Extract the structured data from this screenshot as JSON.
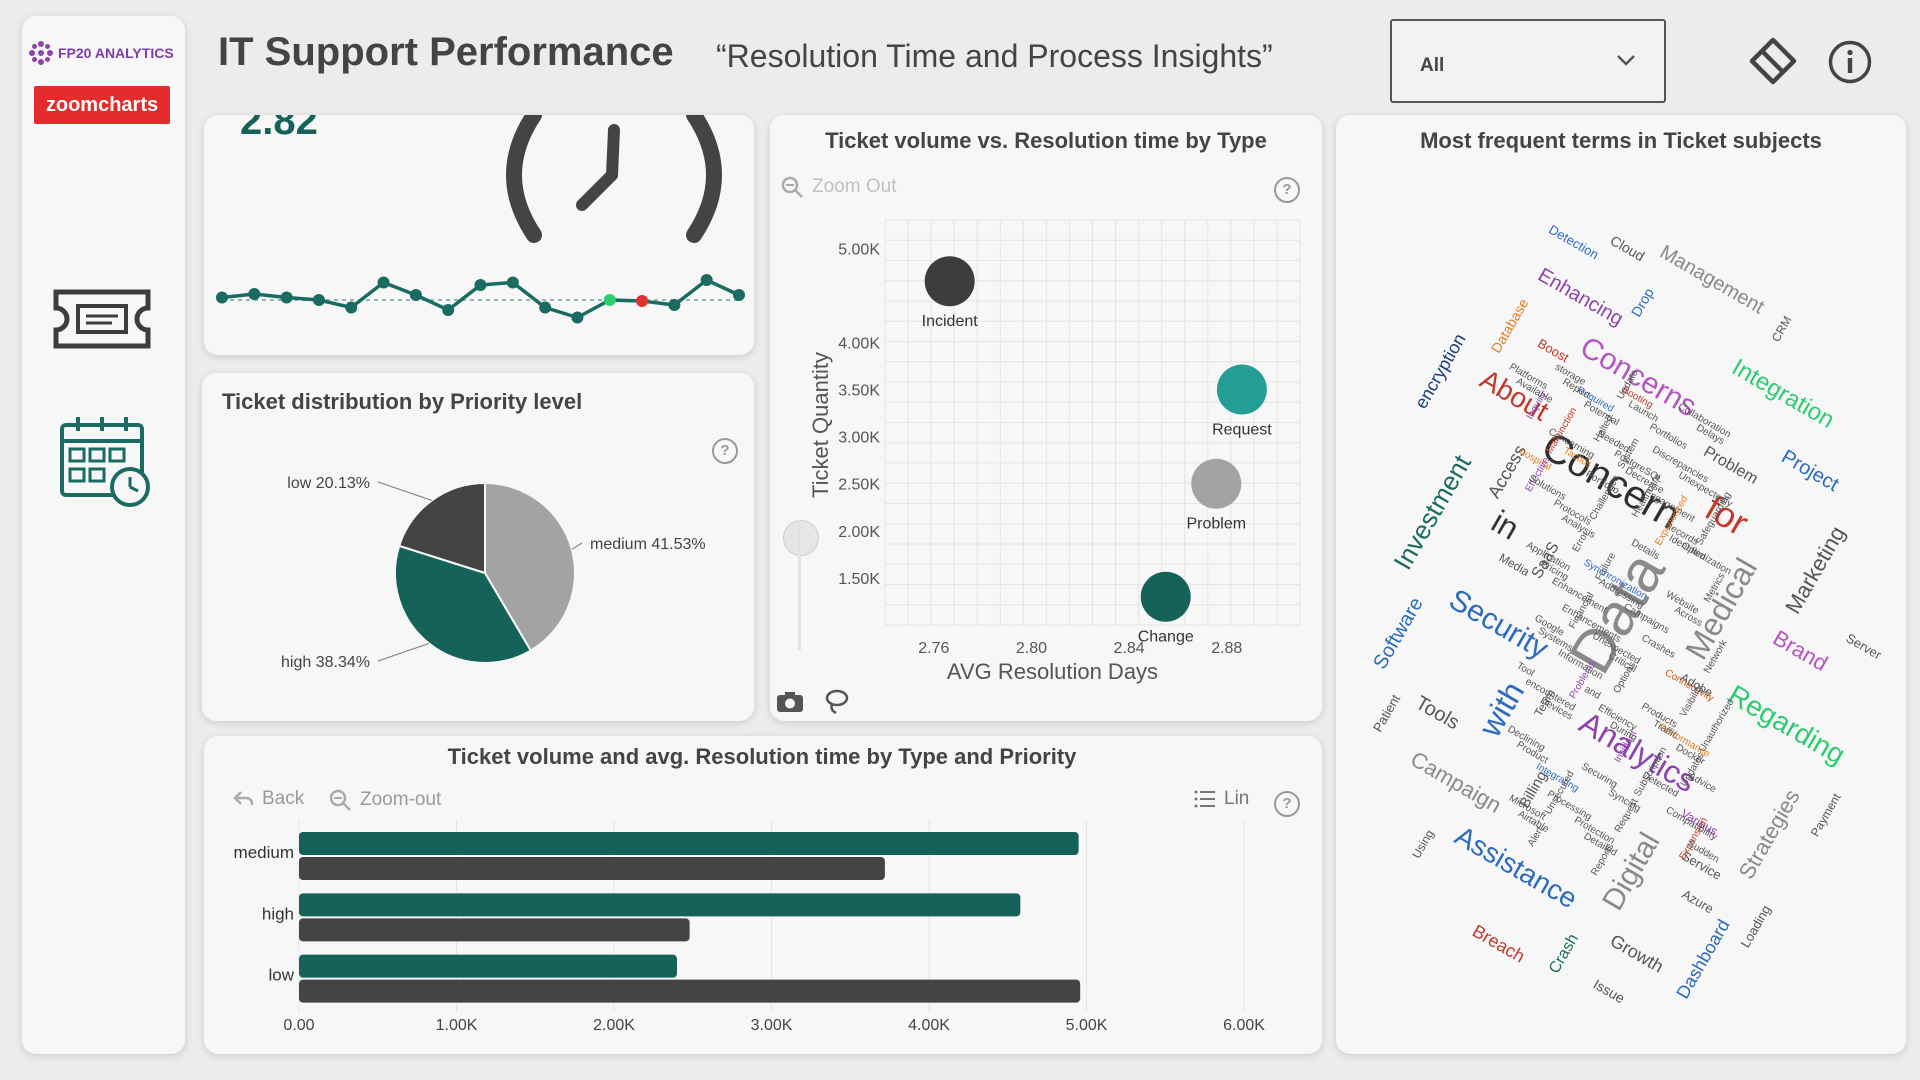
{
  "sidebar": {
    "brand_label": "FP20 ANALYTICS",
    "partner_label": "zoomcharts",
    "icons": [
      "ticket-icon",
      "calendar-clock-icon"
    ]
  },
  "header": {
    "title": "IT Support Performance",
    "subtitle": "“Resolution Time and Process Insights”",
    "filter_value": "All",
    "icons": [
      "eraser-icon",
      "info-icon"
    ]
  },
  "kpi": {
    "value": "2.82",
    "icon": "clock-icon",
    "trend": [
      0.55,
      0.62,
      0.55,
      0.5,
      0.35,
      0.85,
      0.6,
      0.3,
      0.8,
      0.85,
      0.35,
      0.15,
      0.5,
      0.48,
      0.4,
      0.9,
      0.6
    ],
    "highlight_colors": {
      "max": "#2ecc71",
      "min": "#e03131"
    },
    "line_color": "#1a6b61"
  },
  "charts": {
    "scatter": {
      "title": "Ticket volume vs. Resolution time by Type",
      "zoom_label": "Zoom Out"
    },
    "pie": {
      "title": "Ticket distribution by Priority level"
    },
    "bars": {
      "title": "Ticket volume and avg. Resolution time by Type and Priority",
      "back_label": "Back",
      "zoom_label": "Zoom-out",
      "scale_label": "Lin"
    },
    "wordcloud": {
      "title": "Most frequent terms in Ticket subjects"
    }
  },
  "chart_data": [
    {
      "type": "scatter",
      "xlabel": "AVG Resolution Days",
      "ylabel": "Ticket Quantity",
      "xlim": [
        2.74,
        2.91
      ],
      "ylim": [
        1000,
        5300
      ],
      "x_ticks": [
        2.76,
        2.8,
        2.84,
        2.88
      ],
      "x_tick_labels": [
        "2.76",
        "2.80",
        "2.84",
        "2.88"
      ],
      "y_ticks": [
        1500,
        2000,
        2500,
        3000,
        3500,
        4000,
        5000
      ],
      "y_tick_labels": [
        "1.50K",
        "2.00K",
        "2.50K",
        "3.00K",
        "3.50K",
        "4.00K",
        "5.00K"
      ],
      "points": [
        {
          "label": "Incident",
          "x": 2.7665,
          "y": 4650,
          "color": "#3d3d3d"
        },
        {
          "label": "Request",
          "x": 2.8862,
          "y": 3500,
          "color": "#239e94"
        },
        {
          "label": "Problem",
          "x": 2.8757,
          "y": 2500,
          "color": "#a3a3a3"
        },
        {
          "label": "Change",
          "x": 2.855,
          "y": 1300,
          "color": "#15625a"
        }
      ]
    },
    {
      "type": "pie",
      "slices": [
        {
          "label": "medium",
          "value": 41.53,
          "text": "medium 41.53%",
          "color": "#a3a3a3"
        },
        {
          "label": "high",
          "value": 38.34,
          "text": "high 38.34%",
          "color": "#15625a"
        },
        {
          "label": "low",
          "value": 20.13,
          "text": "low 20.13%",
          "color": "#444444"
        }
      ]
    },
    {
      "type": "bar",
      "orientation": "horizontal",
      "categories": [
        "medium",
        "high",
        "low"
      ],
      "series": [
        {
          "values": [
            4950,
            4580,
            2400
          ],
          "color": "#15625a"
        },
        {
          "values": [
            3720,
            2480,
            4960
          ],
          "color": "#444444"
        }
      ],
      "xlim": [
        0,
        6000
      ],
      "x_ticks": [
        0,
        1000,
        2000,
        3000,
        4000,
        5000,
        6000
      ],
      "x_tick_labels": [
        "0.00",
        "1.00K",
        "2.00K",
        "3.00K",
        "4.00K",
        "5.00K",
        "6.00K"
      ]
    }
  ],
  "wordcloud": {
    "words": [
      {
        "text": "Data",
        "size": 60,
        "color": "#8a8a8a"
      },
      {
        "text": "Concern",
        "size": 40,
        "color": "#2e2e2e"
      },
      {
        "text": "Analytics",
        "size": 32,
        "color": "#8e44ad"
      },
      {
        "text": "Medical",
        "size": 32,
        "color": "#8a8a8a"
      },
      {
        "text": "Security",
        "size": 30,
        "color": "#2c6bbf"
      },
      {
        "text": "Concerns",
        "size": 30,
        "color": "#b455c2"
      },
      {
        "text": "with",
        "size": 32,
        "color": "#2c6bbf"
      },
      {
        "text": "for",
        "size": 36,
        "color": "#c0392b"
      },
      {
        "text": "in",
        "size": 32,
        "color": "#333333"
      },
      {
        "text": "Digital",
        "size": 30,
        "color": "#8a8a8a"
      },
      {
        "text": "Regarding",
        "size": 28,
        "color": "#2ecc71"
      },
      {
        "text": "Assistance",
        "size": 28,
        "color": "#2c6bbf"
      },
      {
        "text": "Investment",
        "size": 26,
        "color": "#1a6b61"
      },
      {
        "text": "Integration",
        "size": 24,
        "color": "#2ecc71"
      },
      {
        "text": "About",
        "size": 28,
        "color": "#c0392b"
      },
      {
        "text": "Marketing",
        "size": 22,
        "color": "#555555"
      },
      {
        "text": "Brand",
        "size": 22,
        "color": "#b455c2"
      },
      {
        "text": "Campaign",
        "size": 22,
        "color": "#8a8a8a"
      },
      {
        "text": "Strategies",
        "size": 22,
        "color": "#8a8a8a"
      },
      {
        "text": "Tools",
        "size": 20,
        "color": "#555555"
      },
      {
        "text": "Enhancing",
        "size": 20,
        "color": "#8e44ad"
      },
      {
        "text": "Software",
        "size": 20,
        "color": "#2c6bbf"
      },
      {
        "text": "Project",
        "size": 20,
        "color": "#2c6bbf"
      },
      {
        "text": "Management",
        "size": 20,
        "color": "#8a8a8a"
      },
      {
        "text": "Dashboard",
        "size": 18,
        "color": "#2c6bbf"
      },
      {
        "text": "Growth",
        "size": 18,
        "color": "#555555"
      },
      {
        "text": "Performance",
        "size": 18,
        "color": "#e67e22"
      },
      {
        "text": "encryption",
        "size": 18,
        "color": "#1a3d7c"
      },
      {
        "text": "Breach",
        "size": 18,
        "color": "#c0392b"
      },
      {
        "text": "Required",
        "size": 18,
        "color": "#2c6bbf"
      },
      {
        "text": "System",
        "size": 18,
        "color": "#555555"
      },
      {
        "text": "Engagement",
        "size": 16,
        "color": "#555555"
      },
      {
        "text": "Optimization",
        "size": 16,
        "color": "#555555"
      },
      {
        "text": "Access",
        "size": 18,
        "color": "#555555"
      },
      {
        "text": "Information",
        "size": 15,
        "color": "#555555"
      },
      {
        "text": "Efficiency",
        "size": 15,
        "color": "#555555"
      },
      {
        "text": "Subscription",
        "size": 14,
        "color": "#555555"
      },
      {
        "text": "Compatibility",
        "size": 14,
        "color": "#555555"
      },
      {
        "text": "Platforms",
        "size": 14,
        "color": "#555555"
      },
      {
        "text": "Malfunction",
        "size": 13,
        "color": "#c0392b"
      },
      {
        "text": "Portfolio",
        "size": 14,
        "color": "#555555"
      },
      {
        "text": "Problem",
        "size": 16,
        "color": "#555555"
      },
      {
        "text": "Database",
        "size": 14,
        "color": "#e67e22"
      },
      {
        "text": "Detection",
        "size": 13,
        "color": "#2c6bbf"
      },
      {
        "text": "encountered",
        "size": 15,
        "color": "#555555"
      },
      {
        "text": "Billing",
        "size": 15,
        "color": "#555555"
      },
      {
        "text": "Syncing",
        "size": 13,
        "color": "#555555"
      },
      {
        "text": "Service",
        "size": 13,
        "color": "#555555"
      },
      {
        "text": "Crash",
        "size": 16,
        "color": "#1a6b61"
      },
      {
        "text": "hospital",
        "size": 16,
        "color": "#e67e22"
      },
      {
        "text": "Protocols",
        "size": 14,
        "color": "#555555"
      },
      {
        "text": "Failure",
        "size": 15,
        "color": "#555555"
      },
      {
        "text": "Campaigns",
        "size": 14,
        "color": "#555555"
      },
      {
        "text": "Cloud",
        "size": 14,
        "color": "#555555"
      },
      {
        "text": "Unauthorized",
        "size": 15,
        "color": "#555555"
      },
      {
        "text": "Integrating",
        "size": 14,
        "color": "#2c6bbf"
      },
      {
        "text": "Protection",
        "size": 13,
        "color": "#555555"
      },
      {
        "text": "Update",
        "size": 13,
        "color": "#555555"
      },
      {
        "text": "Portfolios",
        "size": 12,
        "color": "#555555"
      },
      {
        "text": "Unexpectedly",
        "size": 13,
        "color": "#555555"
      },
      {
        "text": "Payment",
        "size": 12,
        "color": "#555555"
      },
      {
        "text": "Enhancement",
        "size": 14,
        "color": "#555555"
      },
      {
        "text": "Unexpected",
        "size": 13,
        "color": "#555555"
      },
      {
        "text": "Patient",
        "size": 13,
        "color": "#555555"
      },
      {
        "text": "Docker",
        "size": 14,
        "color": "#555555"
      },
      {
        "text": "Microsoft",
        "size": 14,
        "color": "#555555"
      },
      {
        "text": "Loading",
        "size": 13,
        "color": "#555555"
      },
      {
        "text": "Potential",
        "size": 12,
        "color": "#555555"
      },
      {
        "text": "PostgreSQL",
        "size": 12,
        "color": "#555555"
      },
      {
        "text": "Experienced",
        "size": 12,
        "color": "#e67e22"
      },
      {
        "text": "Various",
        "size": 12,
        "color": "#8e44ad"
      },
      {
        "text": "Google",
        "size": 12,
        "color": "#555555"
      },
      {
        "text": "Problems",
        "size": 14,
        "color": "#8e44ad"
      },
      {
        "text": "During",
        "size": 14,
        "color": "#555555"
      },
      {
        "text": "Detected",
        "size": 15,
        "color": "#555555"
      },
      {
        "text": "Expansion",
        "size": 14,
        "color": "#c0392b"
      },
      {
        "text": "Available",
        "size": 13,
        "color": "#555555"
      },
      {
        "text": "Concerning",
        "size": 13,
        "color": "#555555"
      },
      {
        "text": "Challenges",
        "size": 14,
        "color": "#555555"
      },
      {
        "text": "Details",
        "size": 15,
        "color": "#555555"
      },
      {
        "text": "Website",
        "size": 14,
        "color": "#555555"
      },
      {
        "text": "Network",
        "size": 13,
        "color": "#555555"
      },
      {
        "text": "Devices",
        "size": 12,
        "color": "#555555"
      },
      {
        "text": "Azure",
        "size": 13,
        "color": "#555555"
      },
      {
        "text": "Request",
        "size": 13,
        "color": "#555555"
      },
      {
        "text": "Server",
        "size": 13,
        "color": "#555555"
      },
      {
        "text": "Collaboration",
        "size": 12,
        "color": "#555555"
      },
      {
        "text": "Effective",
        "size": 12,
        "color": "#8e44ad"
      },
      {
        "text": "Analysis",
        "size": 13,
        "color": "#555555"
      },
      {
        "text": "Synchronization",
        "size": 12,
        "color": "#2c6bbf"
      },
      {
        "text": "Team",
        "size": 12,
        "color": "#555555"
      },
      {
        "text": "Connectivity",
        "size": 11,
        "color": "#d35400"
      },
      {
        "text": "Declining",
        "size": 12,
        "color": "#555555"
      },
      {
        "text": "Unsecured",
        "size": 12,
        "color": "#555555"
      },
      {
        "text": "Detailed",
        "size": 12,
        "color": "#555555"
      },
      {
        "text": "Booting",
        "size": 12,
        "color": "#c0392b"
      },
      {
        "text": "SaaS",
        "size": 16,
        "color": "#555555"
      },
      {
        "text": "Issue",
        "size": 14,
        "color": "#555555"
      },
      {
        "text": "Application",
        "size": 13,
        "color": "#555555"
      },
      {
        "text": "Financial",
        "size": 13,
        "color": "#555555"
      },
      {
        "text": "Critical",
        "size": 13,
        "color": "#555555"
      },
      {
        "text": "Products",
        "size": 14,
        "color": "#555555"
      },
      {
        "text": "Updates",
        "size": 12,
        "color": "#555555"
      },
      {
        "text": "Airtable",
        "size": 12,
        "color": "#555555"
      },
      {
        "text": "storage",
        "size": 12,
        "color": "#555555"
      },
      {
        "text": "Halted",
        "size": 12,
        "color": "#555555"
      },
      {
        "text": "Decrease",
        "size": 12,
        "color": "#555555"
      },
      {
        "text": "Records",
        "size": 13,
        "color": "#555555"
      },
      {
        "text": "Metrics",
        "size": 14,
        "color": "#555555"
      },
      {
        "text": "Systems",
        "size": 14,
        "color": "#555555"
      },
      {
        "text": "and",
        "size": 18,
        "color": "#555555"
      },
      {
        "text": "Incident",
        "size": 14,
        "color": "#8e44ad"
      },
      {
        "text": "Boost",
        "size": 13,
        "color": "#c0392b"
      },
      {
        "text": "Sudden",
        "size": 12,
        "color": "#555555"
      },
      {
        "text": "Inquiry",
        "size": 15,
        "color": "#8e44ad"
      },
      {
        "text": "Tactics",
        "size": 12,
        "color": "#e67e22"
      },
      {
        "text": "Adobe",
        "size": 12,
        "color": "#555555"
      },
      {
        "text": "Drop",
        "size": 14,
        "color": "#2c6bbf"
      },
      {
        "text": "Across",
        "size": 13,
        "color": "#555555"
      },
      {
        "text": "Tool",
        "size": 14,
        "color": "#555555"
      },
      {
        "text": "CRM",
        "size": 12,
        "color": "#555555"
      },
      {
        "text": "Securing",
        "size": 12,
        "color": "#555555"
      },
      {
        "text": "Media",
        "size": 12,
        "color": "#555555"
      },
      {
        "text": "Using",
        "size": 12,
        "color": "#555555"
      },
      {
        "text": "Delays",
        "size": 12,
        "color": "#555555"
      },
      {
        "text": "Solutions",
        "size": 12,
        "color": "#555555"
      },
      {
        "text": "Error",
        "size": 12,
        "color": "#555555"
      },
      {
        "text": "Addressing",
        "size": 12,
        "color": "#555555"
      },
      {
        "text": "Crashes",
        "size": 12,
        "color": "#555555"
      },
      {
        "text": "Visibility",
        "size": 11,
        "color": "#555555"
      },
      {
        "text": "Product",
        "size": 12,
        "color": "#555555"
      },
      {
        "text": "Processing",
        "size": 12,
        "color": "#555555"
      },
      {
        "text": "Reports",
        "size": 12,
        "color": "#555555"
      },
      {
        "text": "Launch",
        "size": 12,
        "color": "#555555"
      },
      {
        "text": "Discrepancies",
        "size": 12,
        "color": "#555555"
      },
      {
        "text": "Safeguarding",
        "size": 12,
        "color": "#555555"
      },
      {
        "text": "Pricing",
        "size": 12,
        "color": "#555555"
      },
      {
        "text": "Enhancements",
        "size": 12,
        "color": "#555555"
      },
      {
        "text": "Options",
        "size": 12,
        "color": "#555555"
      },
      {
        "text": "Traffic",
        "size": 12,
        "color": "#555555"
      },
      {
        "text": "Advice",
        "size": 12,
        "color": "#555555"
      },
      {
        "text": "Alert",
        "size": 12,
        "color": "#555555"
      },
      {
        "text": "Report",
        "size": 12,
        "color": "#555555"
      },
      {
        "text": "Needed",
        "size": 12,
        "color": "#555555"
      },
      {
        "text": "Healthcare",
        "size": 12,
        "color": "#555555"
      },
      {
        "text": "Identified",
        "size": 12,
        "color": "#555555"
      }
    ]
  }
}
